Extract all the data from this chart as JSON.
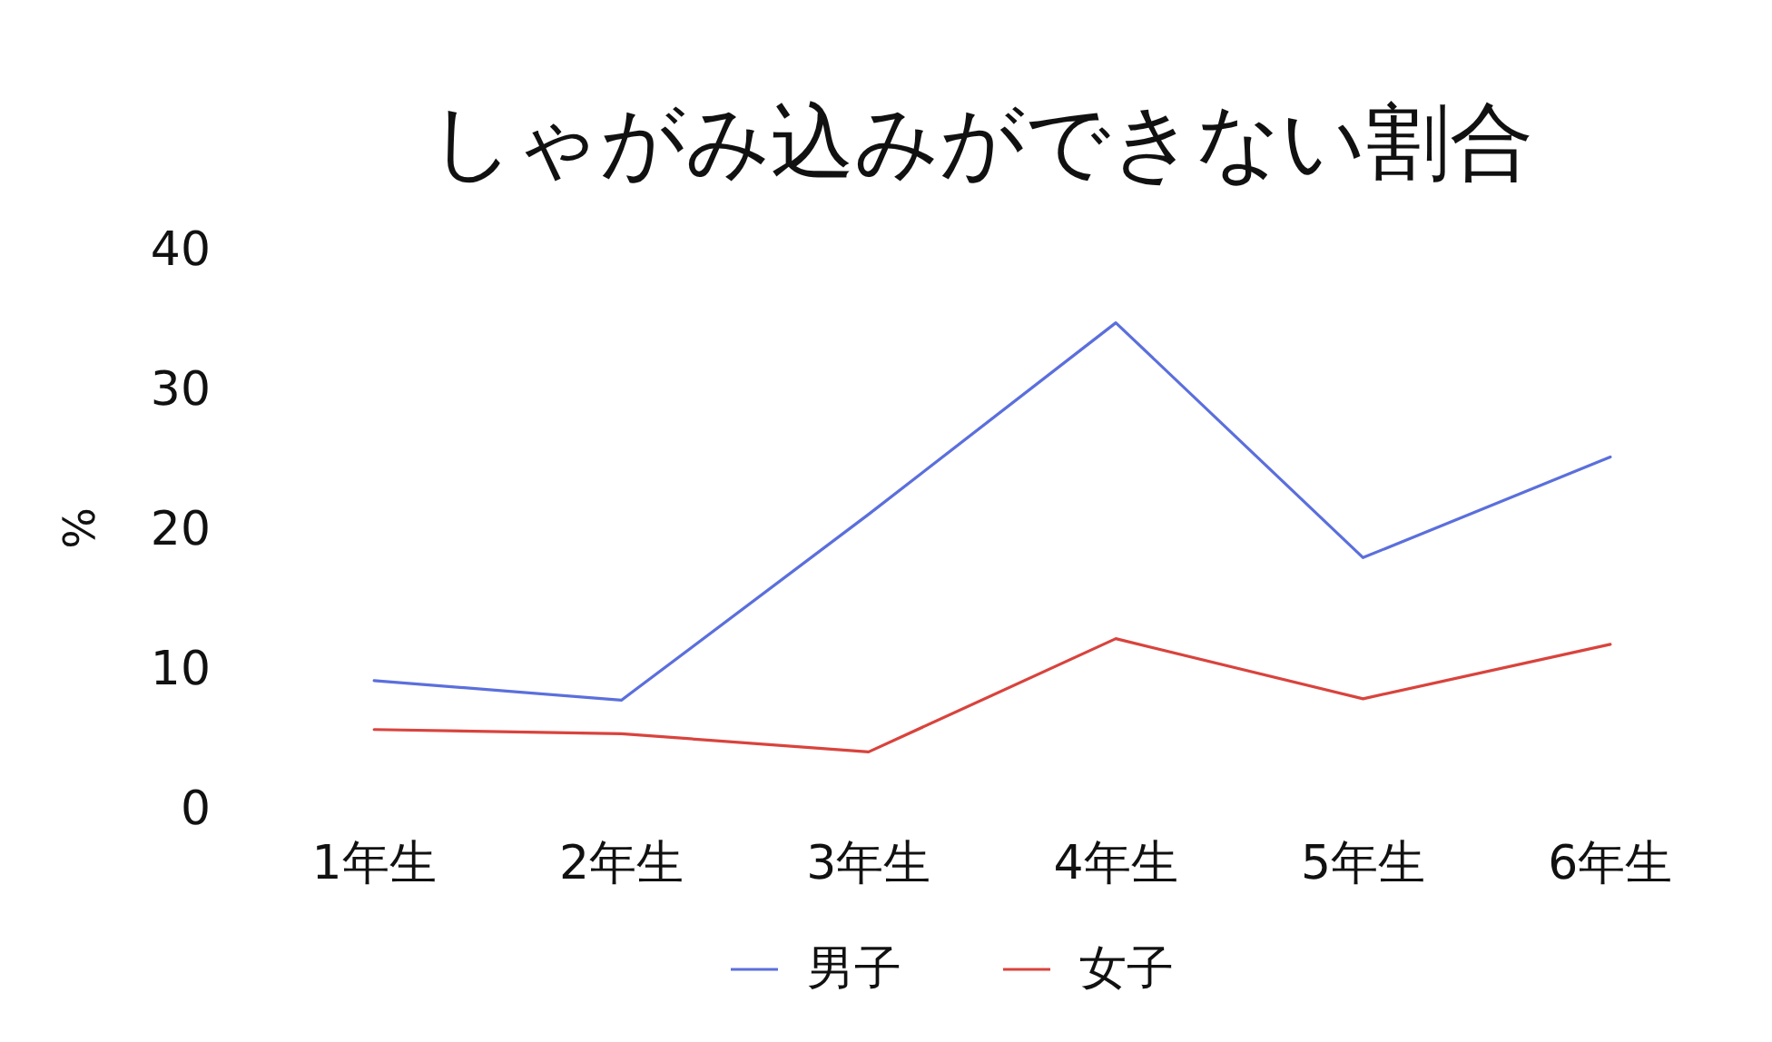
{
  "chart_data": {
    "type": "line",
    "title": "しゃがみ込みができない割合",
    "ylabel": "%",
    "categories": [
      "1年生",
      "2年生",
      "3年生",
      "4年生",
      "5年生",
      "6年生"
    ],
    "series": [
      {
        "name": "男子",
        "color": "#5b6fdc",
        "values": [
          9.1,
          7.7,
          21,
          34.7,
          17.9,
          25.1
        ]
      },
      {
        "name": "女子",
        "color": "#d9433d",
        "values": [
          5.6,
          5.3,
          4.0,
          12.1,
          7.8,
          11.7
        ]
      }
    ],
    "ylim": [
      0,
      40
    ],
    "yticks": [
      0,
      10,
      20,
      30,
      40
    ],
    "grid": false,
    "legend": "bottom",
    "marker": "none",
    "line_style": "solid"
  }
}
